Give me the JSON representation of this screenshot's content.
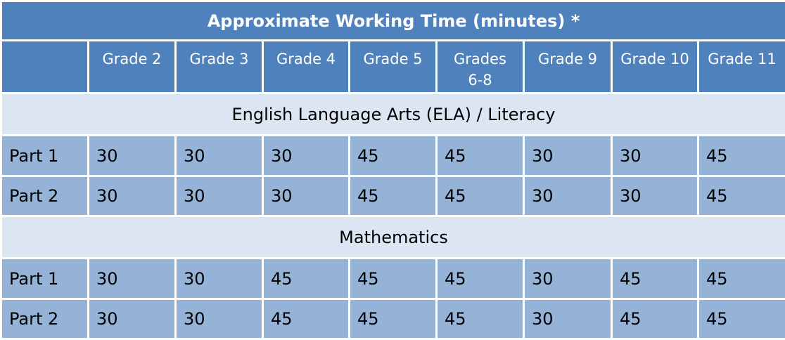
{
  "title": "Approximate Working Time (minutes) *",
  "grades": [
    "Grade 2",
    "Grade 3",
    "Grade 4",
    "Grade 5",
    "Grades\n6-8",
    "Grade 9",
    "Grade 10",
    "Grade 11"
  ],
  "sections": [
    {
      "name": "English Language Arts (ELA) / Literacy",
      "rows": [
        {
          "label": "Part 1",
          "values": [
            "30",
            "30",
            "30",
            "45",
            "45",
            "30",
            "30",
            "45"
          ]
        },
        {
          "label": "Part 2",
          "values": [
            "30",
            "30",
            "30",
            "45",
            "45",
            "30",
            "30",
            "45"
          ]
        }
      ]
    },
    {
      "name": "Mathematics",
      "rows": [
        {
          "label": "Part 1",
          "values": [
            "30",
            "30",
            "45",
            "45",
            "45",
            "30",
            "45",
            "45"
          ]
        },
        {
          "label": "Part 2",
          "values": [
            "30",
            "30",
            "45",
            "45",
            "45",
            "30",
            "45",
            "45"
          ]
        }
      ]
    }
  ],
  "colors": {
    "header_bg": "#4f81bd",
    "section_bg": "#dce6f2",
    "cell_bg": "#95b3d7"
  }
}
